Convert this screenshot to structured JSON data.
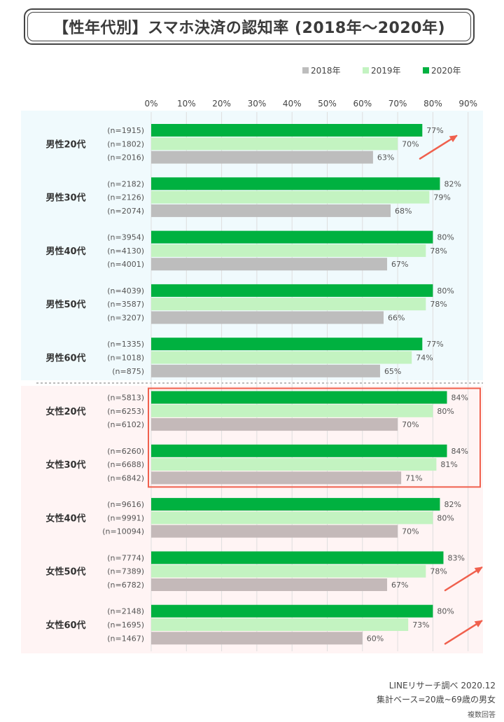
{
  "title": "【性年代別】スマホ決済の認知率 (2018年～2020年)",
  "footer": {
    "source": "LINEリサーチ調べ 2020.12",
    "base": "集計ベース=20歳~69歳の男女",
    "note": "複数回答"
  },
  "colors": {
    "y2018": "#bdbdbd",
    "y2019": "#c3f3c1",
    "y2020": "#00b140",
    "male_bg": "#f0fafd",
    "female_bg": "#fff4f4",
    "highlight": "#f0604d",
    "arrow": "#f0604d"
  },
  "chart_data": {
    "type": "bar",
    "orientation": "horizontal",
    "xlim": [
      0,
      90
    ],
    "x_ticks": [
      "0%",
      "10%",
      "20%",
      "30%",
      "40%",
      "50%",
      "60%",
      "70%",
      "80%",
      "90%"
    ],
    "legend_position": "top-right",
    "series_names": [
      "2020年",
      "2019年",
      "2018年"
    ],
    "legend": [
      "2018年",
      "2019年",
      "2020年"
    ],
    "groups": [
      {
        "label": "男性20代",
        "values": [
          77,
          70,
          63
        ],
        "labels": [
          "77%",
          "70%",
          "63%"
        ],
        "n": [
          "(n=1915)",
          "(n=1802)",
          "(n=2016)"
        ]
      },
      {
        "label": "男性30代",
        "values": [
          82,
          79,
          68
        ],
        "labels": [
          "82%",
          "79%",
          "68%"
        ],
        "n": [
          "(n=2182)",
          "(n=2126)",
          "(n=2074)"
        ]
      },
      {
        "label": "男性40代",
        "values": [
          80,
          78,
          67
        ],
        "labels": [
          "80%",
          "78%",
          "67%"
        ],
        "n": [
          "(n=3954)",
          "(n=4130)",
          "(n=4001)"
        ]
      },
      {
        "label": "男性50代",
        "values": [
          80,
          78,
          66
        ],
        "labels": [
          "80%",
          "78%",
          "66%"
        ],
        "n": [
          "(n=4039)",
          "(n=3587)",
          "(n=3207)"
        ]
      },
      {
        "label": "男性60代",
        "values": [
          77,
          74,
          65
        ],
        "labels": [
          "77%",
          "74%",
          "65%"
        ],
        "n": [
          "(n=1335)",
          "(n=1018)",
          "(n=875)"
        ]
      },
      {
        "label": "女性20代",
        "values": [
          84,
          80,
          70
        ],
        "labels": [
          "84%",
          "80%",
          "70%"
        ],
        "n": [
          "(n=5813)",
          "(n=6253)",
          "(n=6102)"
        ]
      },
      {
        "label": "女性30代",
        "values": [
          84,
          81,
          71
        ],
        "labels": [
          "84%",
          "81%",
          "71%"
        ],
        "n": [
          "(n=6260)",
          "(n=6688)",
          "(n=6842)"
        ]
      },
      {
        "label": "女性40代",
        "values": [
          82,
          80,
          70
        ],
        "labels": [
          "82%",
          "80%",
          "70%"
        ],
        "n": [
          "(n=9616)",
          "(n=9991)",
          "(n=10094)"
        ]
      },
      {
        "label": "女性50代",
        "values": [
          83,
          78,
          67
        ],
        "labels": [
          "83%",
          "78%",
          "67%"
        ],
        "n": [
          "(n=7774)",
          "(n=7389)",
          "(n=6782)"
        ]
      },
      {
        "label": "女性60代",
        "values": [
          80,
          73,
          60
        ],
        "labels": [
          "80%",
          "73%",
          "60%"
        ],
        "n": [
          "(n=2148)",
          "(n=1695)",
          "(n=1467)"
        ]
      }
    ],
    "highlighted_groups": [
      "女性20代",
      "女性30代"
    ],
    "trend_arrows_on": [
      "男性20代",
      "女性50代",
      "女性60代"
    ]
  }
}
